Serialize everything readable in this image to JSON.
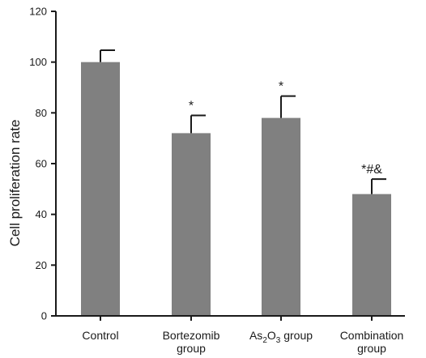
{
  "chart_data": {
    "type": "bar",
    "title": "",
    "xlabel": "",
    "ylabel": "Cell proliferation rate",
    "ylim": [
      0,
      120
    ],
    "yticks": [
      0,
      20,
      40,
      60,
      80,
      100,
      120
    ],
    "grid": false,
    "categories": [
      {
        "lines": [
          {
            "text": "Control"
          }
        ]
      },
      {
        "lines": [
          {
            "text": "Bortezomib"
          },
          {
            "text": "group"
          }
        ]
      },
      {
        "lines": [
          {
            "parts": [
              {
                "text": "As",
                "sub": false
              },
              {
                "text": "2",
                "sub": true
              },
              {
                "text": "O",
                "sub": false
              },
              {
                "text": "3",
                "sub": true
              },
              {
                "text": " group",
                "sub": false
              }
            ]
          }
        ]
      },
      {
        "lines": [
          {
            "text": "Combination"
          },
          {
            "text": "group"
          }
        ]
      }
    ],
    "values": [
      100,
      72,
      78,
      48
    ],
    "errors": [
      4.7,
      7,
      8.6,
      5.9
    ],
    "annotations": [
      "",
      "*",
      "*",
      "*#&"
    ],
    "bar_color": "#808080",
    "axis_color": "#1a1a1a"
  }
}
